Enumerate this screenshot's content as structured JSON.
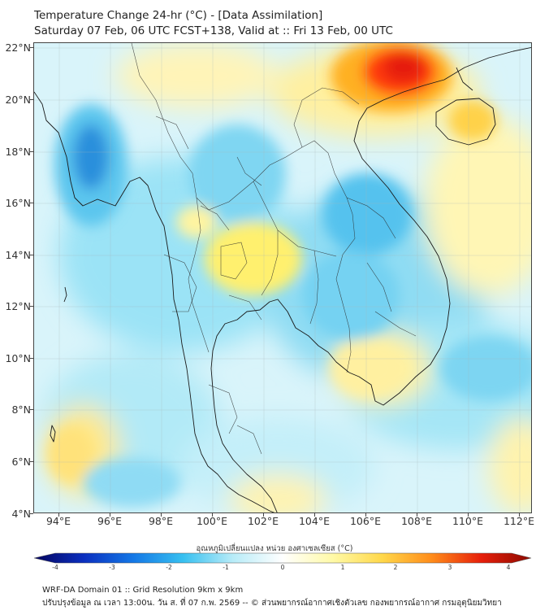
{
  "title": {
    "line1": "Temperature Change 24-hr (°C) - [Data Assimilation]",
    "line2": "Saturday 07 Feb, 06 UTC FCST+138, Valid at :: Fri 13 Feb, 00 UTC"
  },
  "map": {
    "lon_range": [
      93,
      112.5
    ],
    "lat_range": [
      4,
      22.2
    ],
    "y_axis_labels": [
      "4°N",
      "6°N",
      "8°N",
      "10°N",
      "12°N",
      "14°N",
      "16°N",
      "18°N",
      "20°N",
      "22°N"
    ],
    "x_axis_labels": [
      "94°E",
      "96°E",
      "98°E",
      "100°E",
      "102°E",
      "104°E",
      "106°E",
      "108°E",
      "110°E",
      "112°E"
    ],
    "field_anomalies": [
      {
        "name": "cold-core-myanmar",
        "lon": 95.2,
        "lat": 18.4,
        "value": -2.1
      },
      {
        "name": "cold-laos",
        "lon": 101.8,
        "lat": 17.0,
        "value": -0.9
      },
      {
        "name": "cold-vietnam-central",
        "lon": 105.3,
        "lat": 15.4,
        "value": -1.1
      },
      {
        "name": "cold-cambodia",
        "lon": 104.6,
        "lat": 12.2,
        "value": -0.9
      },
      {
        "name": "cold-east-sea",
        "lon": 110.3,
        "lat": 10.5,
        "value": -0.8
      },
      {
        "name": "cold-andaman",
        "lon": 95.8,
        "lat": 6.2,
        "value": -0.7
      },
      {
        "name": "warm-core-gulf-tonkin",
        "lon": 107.2,
        "lat": 21.3,
        "value": 3.0
      },
      {
        "name": "warm-hainan",
        "lon": 110.0,
        "lat": 19.5,
        "value": 1.6
      },
      {
        "name": "warm-central-thailand",
        "lon": 101.3,
        "lat": 14.1,
        "value": 1.1
      },
      {
        "name": "warm-south-vietnam",
        "lon": 105.8,
        "lat": 9.8,
        "value": 0.9
      },
      {
        "name": "warm-andaman-south",
        "lon": 94.5,
        "lat": 6.2,
        "value": 0.9
      },
      {
        "name": "warm-north-myanmar",
        "lon": 98.5,
        "lat": 21.7,
        "value": 0.8
      }
    ]
  },
  "colorbar": {
    "title": "อุณหภูมิเปลี่ยนแปลง หน่วย องศาเซลเซียส (°C)",
    "min": -4,
    "max": 4,
    "tick_labels": [
      "-4",
      "-3",
      "-2",
      "-1",
      "0",
      "1",
      "2",
      "3",
      "4"
    ],
    "colors": [
      "#05055f",
      "#0b2fbf",
      "#1478e6",
      "#37c0f0",
      "#b8ecf8",
      "#ffffff",
      "#fffaa8",
      "#ffd84a",
      "#ff8c1a",
      "#e61e0a",
      "#8c0a00"
    ]
  },
  "footer": {
    "line1": "WRF-DA Domain 01 :: Grid Resolution 9km x 9km",
    "line2": "ปรับปรุงข้อมูล ณ เวลา 13:00น. วัน ส. ที่ 07 ก.พ. 2569 -- © ส่วนพยากรณ์อากาศเชิงตัวเลข กองพยากรณ์อากาศ กรมอุตุนิยมวิทยา"
  }
}
